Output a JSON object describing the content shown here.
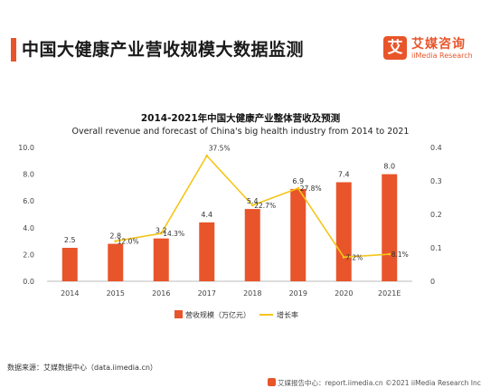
{
  "header": {
    "title": "中国大健康产业营收规模大数据监测",
    "logo_mark": "艾",
    "logo_name": "艾媒咨询",
    "logo_sub": "iiMedia Research"
  },
  "chart_data": {
    "type": "bar",
    "title": "2014-2021年中国大健康产业整体营收及预测",
    "subtitle": "Overall revenue and forecast of China's big health industry from 2014 to 2021",
    "categories": [
      "2014",
      "2015",
      "2016",
      "2017",
      "2018",
      "2019",
      "2020",
      "2021E"
    ],
    "series": [
      {
        "name": "营收规模（万亿元）",
        "type": "bar",
        "axis": "left",
        "color": "#e8552a",
        "values": [
          2.5,
          2.8,
          3.2,
          4.4,
          5.4,
          6.9,
          7.4,
          8.0
        ],
        "labels": [
          "2.5",
          "2.8",
          "3.2",
          "4.4",
          "5.4",
          "6.9",
          "7.4",
          "8.0"
        ]
      },
      {
        "name": "增长率",
        "type": "line",
        "axis": "right",
        "color": "#f5c518",
        "values": [
          null,
          0.12,
          0.143,
          0.375,
          0.227,
          0.278,
          0.072,
          0.081
        ],
        "labels": [
          "",
          "12.0%",
          "14.3%",
          "37.5%",
          "22.7%",
          "27.8%",
          "7.2%",
          "8.1%"
        ]
      }
    ],
    "y_left": {
      "min": 0,
      "max": 10,
      "ticks": [
        "0.0",
        "2.0",
        "4.0",
        "6.0",
        "8.0",
        "10.0"
      ]
    },
    "y_right": {
      "min": 0,
      "max": 0.4,
      "ticks": [
        "0",
        "0.1",
        "0.2",
        "0.3",
        "0.4"
      ]
    },
    "grid": false,
    "legend_position": "bottom"
  },
  "footer": {
    "source": "数据来源：艾媒数据中心（data.iimedia.cn）",
    "right": "艾媒报告中心：report.iimedia.cn ©2021 iiMedia Research Inc"
  }
}
